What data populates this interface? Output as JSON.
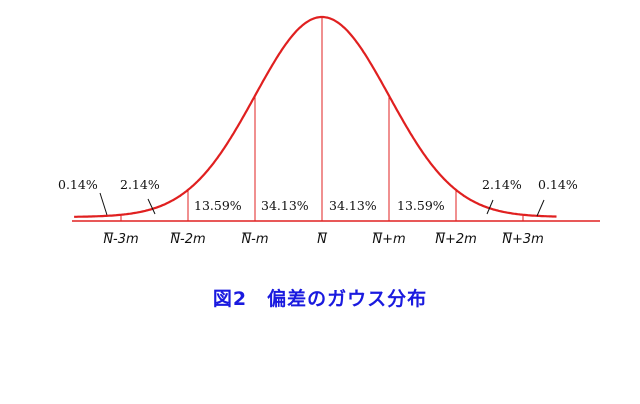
{
  "caption": "図2　偏差のガウス分布",
  "colors": {
    "curve": "#e02020",
    "caption": "#1a1adf",
    "text": "#111111"
  },
  "chart_data": {
    "type": "area",
    "distribution": "normal",
    "x_ticks": [
      "N-3m",
      "N-2m",
      "N-m",
      "N",
      "N+m",
      "N+2m",
      "N+3m"
    ],
    "bands": [
      {
        "label": "0.14%",
        "from": -4,
        "to": -3,
        "value": 0.14
      },
      {
        "label": "2.14%",
        "from": -3,
        "to": -2,
        "value": 2.14
      },
      {
        "label": "13.59%",
        "from": -2,
        "to": -1,
        "value": 13.59
      },
      {
        "label": "34.13%",
        "from": -1,
        "to": 0,
        "value": 34.13
      },
      {
        "label": "34.13%",
        "from": 0,
        "to": 1,
        "value": 34.13
      },
      {
        "label": "13.59%",
        "from": 1,
        "to": 2,
        "value": 13.59
      },
      {
        "label": "2.14%",
        "from": 2,
        "to": 3,
        "value": 2.14
      },
      {
        "label": "0.14%",
        "from": 3,
        "to": 4,
        "value": 0.14
      }
    ],
    "xlabel": "",
    "ylabel": ""
  }
}
